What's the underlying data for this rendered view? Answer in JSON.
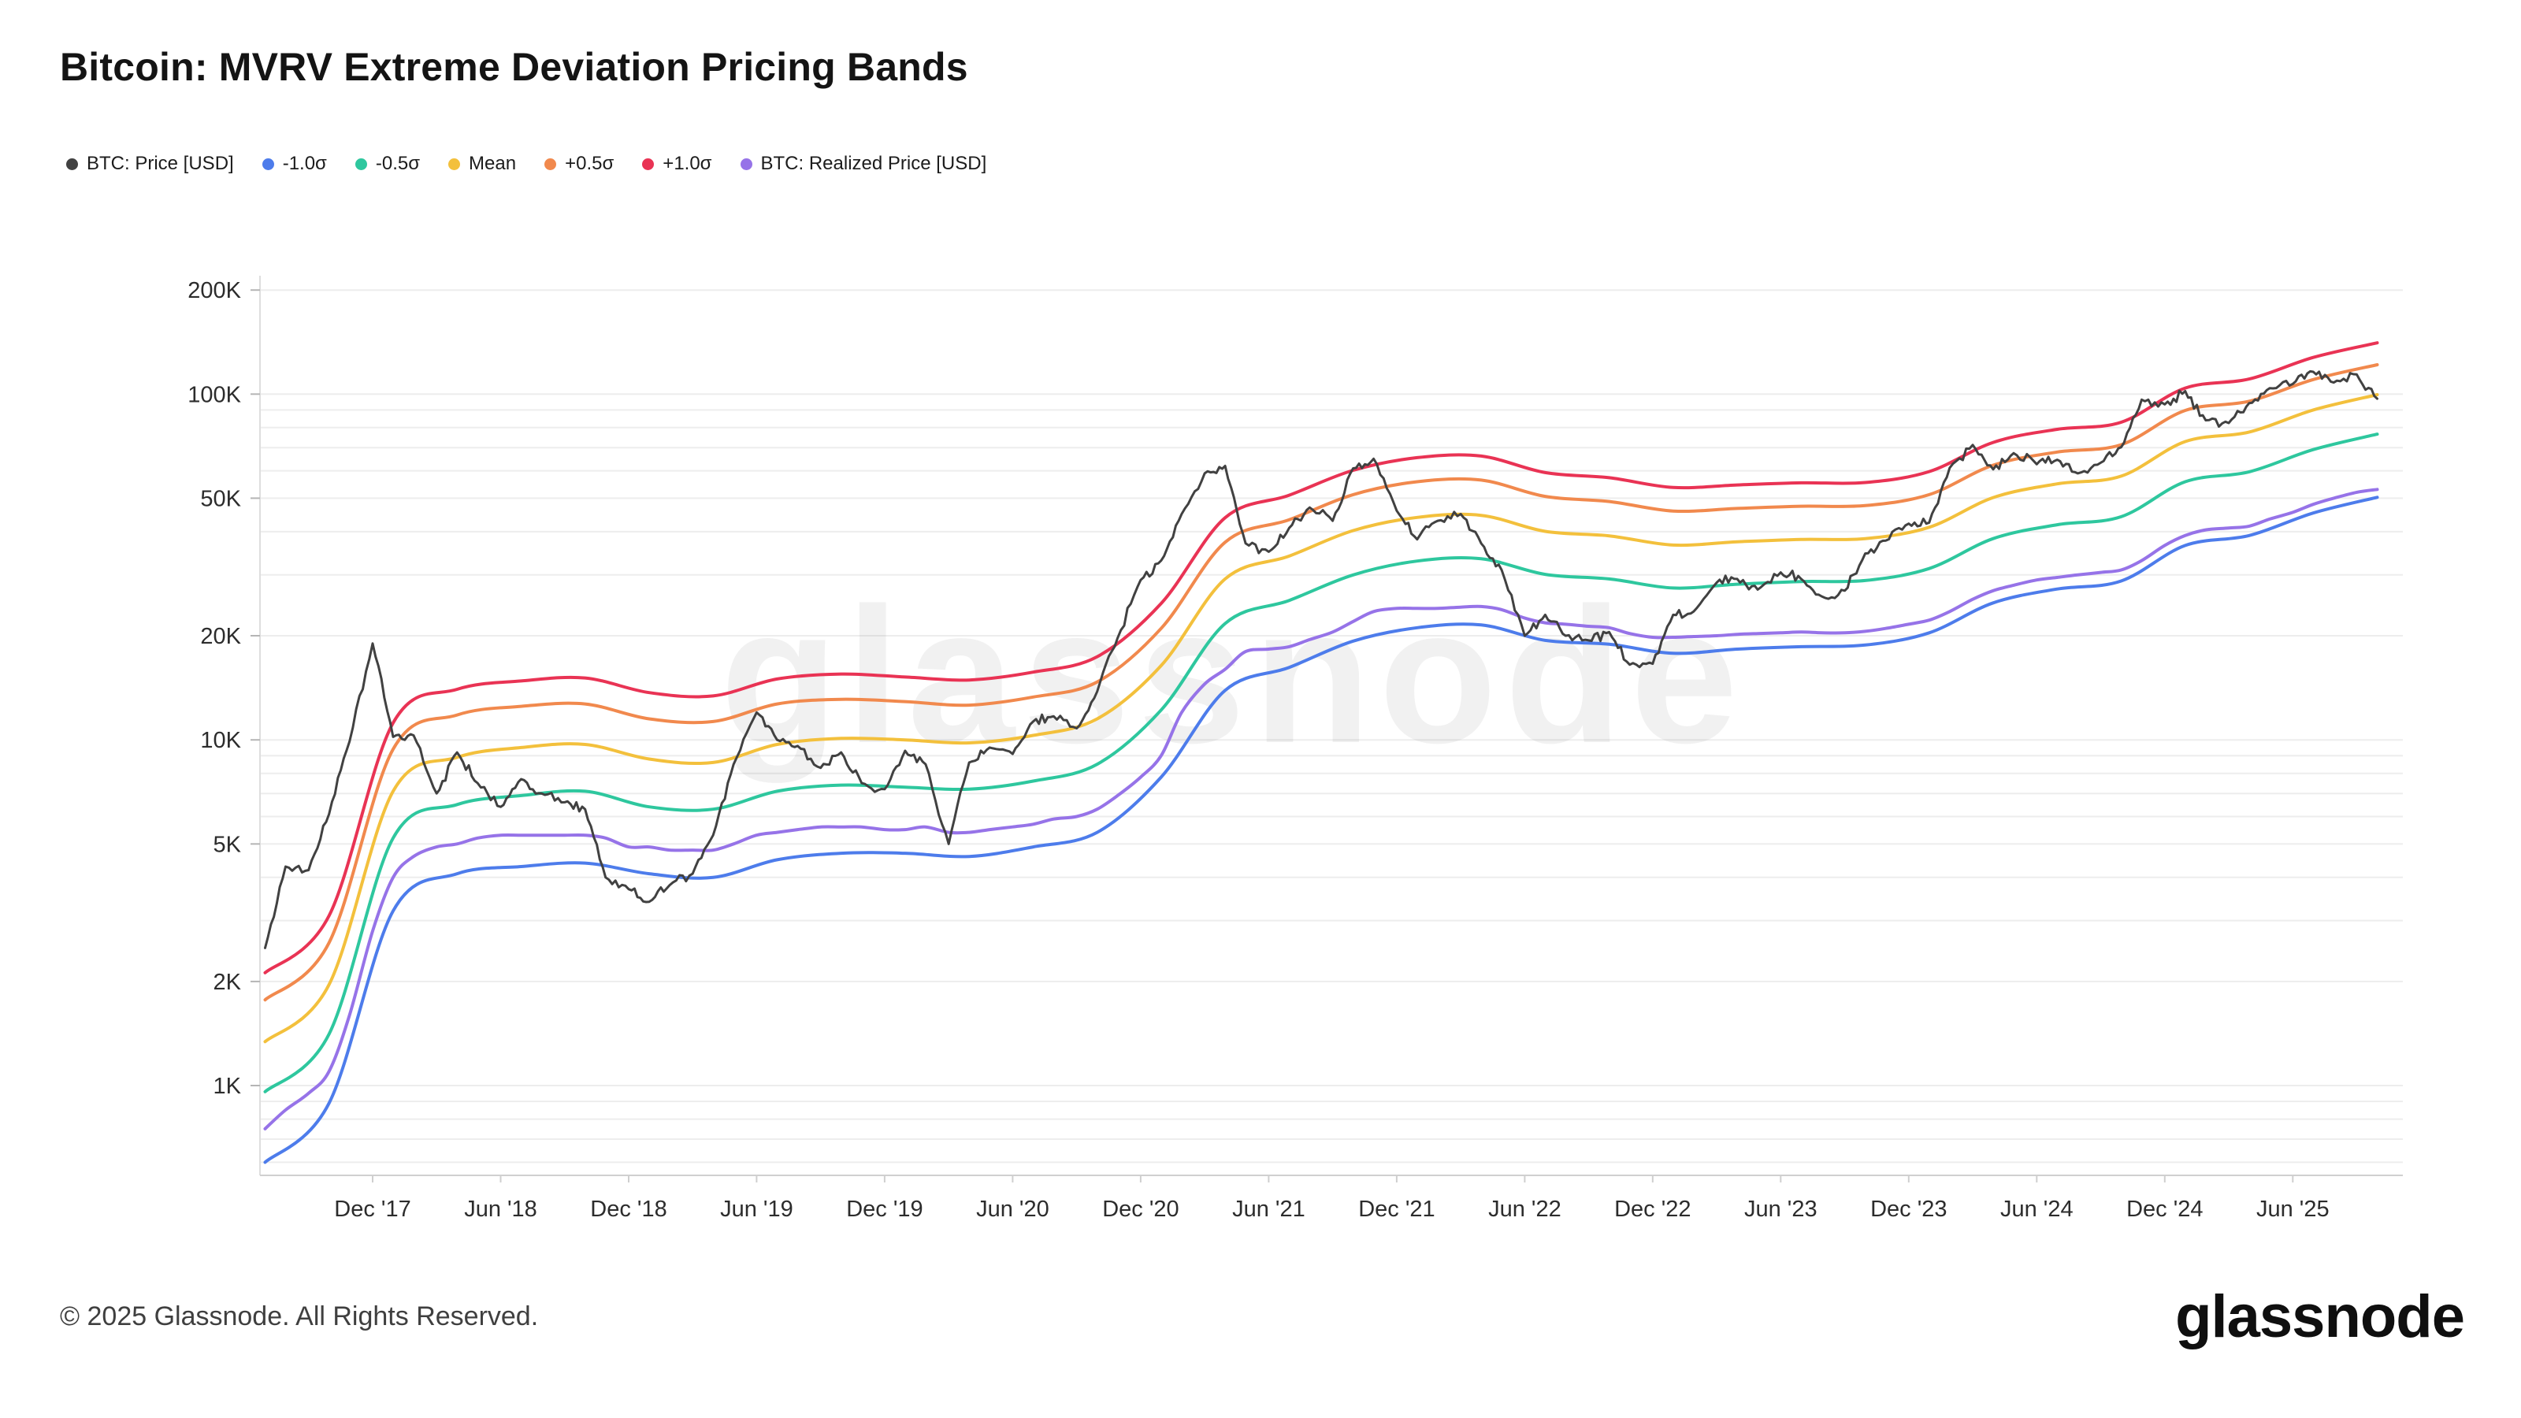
{
  "page": {
    "title": "Bitcoin: MVRV Extreme Deviation Pricing Bands",
    "watermark": "glassnode",
    "footer": {
      "copyright": "© 2025 Glassnode. All Rights Reserved.",
      "brand": "glassnode"
    }
  },
  "legend": {
    "position": "top-left",
    "items": [
      {
        "key": "btc-price",
        "label": "BTC: Price [USD]",
        "color": "#414141"
      },
      {
        "key": "minus-1-0-sigma",
        "label": "-1.0σ",
        "color": "#4d7ceb"
      },
      {
        "key": "minus-0-5-sigma",
        "label": "-0.5σ",
        "color": "#2ec79e"
      },
      {
        "key": "mean",
        "label": "Mean",
        "color": "#f3c03c"
      },
      {
        "key": "plus-0-5-sigma",
        "label": "+0.5σ",
        "color": "#f1894d"
      },
      {
        "key": "plus-1-0-sigma",
        "label": "+1.0σ",
        "color": "#e93354"
      },
      {
        "key": "btc-realized-price",
        "label": "BTC: Realized Price [USD]",
        "color": "#9673e8"
      }
    ]
  },
  "chart_data": {
    "type": "line",
    "title": "Bitcoin: MVRV Extreme Deviation Pricing Bands",
    "y_scale": "log",
    "y_unit": "USD (values in thousands)",
    "grid": "horizontal-only",
    "x_domain": [
      2017.48,
      2025.85
    ],
    "y_domain_k": [
      0.55,
      220
    ],
    "y_ticks": [
      {
        "label": "1K",
        "k": 1
      },
      {
        "label": "2K",
        "k": 2
      },
      {
        "label": "5K",
        "k": 5
      },
      {
        "label": "10K",
        "k": 10
      },
      {
        "label": "20K",
        "k": 20
      },
      {
        "label": "50K",
        "k": 50
      },
      {
        "label": "100K",
        "k": 100
      },
      {
        "label": "200K",
        "k": 200
      }
    ],
    "minor_gridlines_k": [
      0.6,
      0.7,
      0.8,
      0.9,
      1,
      2,
      3,
      4,
      5,
      6,
      7,
      8,
      9,
      10,
      20,
      30,
      40,
      50,
      60,
      70,
      80,
      90,
      100,
      200
    ],
    "x_ticks": [
      {
        "label": "Dec '17",
        "x": 2017.92
      },
      {
        "label": "Jun '18",
        "x": 2018.42
      },
      {
        "label": "Dec '18",
        "x": 2018.92
      },
      {
        "label": "Jun '19",
        "x": 2019.42
      },
      {
        "label": "Dec '19",
        "x": 2019.92
      },
      {
        "label": "Jun '20",
        "x": 2020.42
      },
      {
        "label": "Dec '20",
        "x": 2020.92
      },
      {
        "label": "Jun '21",
        "x": 2021.42
      },
      {
        "label": "Dec '21",
        "x": 2021.92
      },
      {
        "label": "Jun '22",
        "x": 2022.42
      },
      {
        "label": "Dec '22",
        "x": 2022.92
      },
      {
        "label": "Jun '23",
        "x": 2023.42
      },
      {
        "label": "Dec '23",
        "x": 2023.92
      },
      {
        "label": "Jun '24",
        "x": 2024.42
      },
      {
        "label": "Dec '24",
        "x": 2024.92
      },
      {
        "label": "Jun '25",
        "x": 2025.42
      }
    ],
    "x_monthly": [
      2017.5,
      2017.58,
      2017.67,
      2017.75,
      2017.83,
      2017.92,
      2018,
      2018.08,
      2018.17,
      2018.25,
      2018.33,
      2018.42,
      2018.5,
      2018.58,
      2018.67,
      2018.75,
      2018.83,
      2018.92,
      2019,
      2019.08,
      2019.17,
      2019.25,
      2019.33,
      2019.42,
      2019.5,
      2019.58,
      2019.67,
      2019.75,
      2019.83,
      2019.92,
      2020,
      2020.08,
      2020.17,
      2020.25,
      2020.33,
      2020.42,
      2020.5,
      2020.58,
      2020.67,
      2020.75,
      2020.83,
      2020.92,
      2021,
      2021.08,
      2021.17,
      2021.25,
      2021.33,
      2021.42,
      2021.5,
      2021.58,
      2021.67,
      2021.75,
      2021.83,
      2021.92,
      2022,
      2022.08,
      2022.17,
      2022.25,
      2022.33,
      2022.42,
      2022.5,
      2022.58,
      2022.67,
      2022.75,
      2022.83,
      2022.92,
      2023,
      2023.08,
      2023.17,
      2023.25,
      2023.33,
      2023.42,
      2023.5,
      2023.58,
      2023.67,
      2023.75,
      2023.83,
      2023.92,
      2024,
      2024.08,
      2024.17,
      2024.25,
      2024.33,
      2024.42,
      2024.5,
      2024.58,
      2024.67,
      2024.75,
      2024.83,
      2024.92,
      2025,
      2025.08,
      2025.17,
      2025.25,
      2025.33,
      2025.42,
      2025.5,
      2025.58,
      2025.67,
      2025.75
    ],
    "x_quarterly": [
      2017.5,
      2017.75,
      2018,
      2018.25,
      2018.5,
      2018.75,
      2019,
      2019.25,
      2019.5,
      2019.75,
      2020,
      2020.25,
      2020.5,
      2020.75,
      2021,
      2021.25,
      2021.5,
      2021.75,
      2022,
      2022.25,
      2022.5,
      2022.75,
      2023,
      2023.25,
      2023.5,
      2023.75,
      2024,
      2024.25,
      2024.5,
      2024.75,
      2025,
      2025.25,
      2025.5,
      2025.75
    ],
    "series": [
      {
        "key": "btc-price",
        "name": "BTC: Price [USD]",
        "color": "#414141",
        "width": 3,
        "x": "monthly",
        "jitter": 7,
        "y_k": [
          2.5,
          4.3,
          4.2,
          6.1,
          9.9,
          19,
          10.2,
          10.3,
          7,
          9.2,
          7.5,
          6.4,
          7.7,
          7,
          6.6,
          6.3,
          4,
          3.7,
          3.4,
          3.8,
          4.1,
          5.3,
          8.5,
          12,
          10,
          9.6,
          8.3,
          9.2,
          7.5,
          7.2,
          9.3,
          8.5,
          5,
          8.6,
          9.5,
          9.1,
          11.3,
          11.7,
          10.8,
          13.8,
          19.7,
          29,
          33,
          45,
          59,
          62,
          37,
          35,
          41,
          47,
          43,
          61,
          65,
          46,
          38,
          43,
          45,
          37,
          31,
          20,
          23,
          20,
          19.4,
          20.5,
          16.5,
          16.6,
          23,
          23.5,
          28.5,
          29.2,
          27.2,
          30.5,
          29.2,
          26,
          27,
          34.6,
          37.7,
          42.2,
          42.5,
          61.2,
          71.3,
          60.6,
          67.5,
          62.7,
          64.6,
          59,
          63.3,
          70.2,
          96.4,
          93.4,
          102,
          84,
          82.5,
          94.2,
          104,
          107,
          116,
          108,
          114,
          97
        ]
      },
      {
        "key": "minus-1-0-sigma",
        "name": "-1.0σ",
        "color": "#4d7ceb",
        "width": 4,
        "x": "quarterly",
        "y_k": [
          0.6,
          0.89,
          3.2,
          4.1,
          4.3,
          4.4,
          4.1,
          4,
          4.5,
          4.7,
          4.7,
          4.6,
          4.9,
          5.4,
          7.8,
          13.9,
          16.2,
          19.3,
          21.1,
          21.5,
          19.4,
          18.9,
          17.8,
          18.3,
          18.6,
          18.8,
          20.4,
          24.9,
          27.3,
          28.8,
          36.5,
          39,
          45.3,
          50.3
        ]
      },
      {
        "key": "minus-0-5-sigma",
        "name": "-0.5σ",
        "color": "#2ec79e",
        "width": 4,
        "x": "quarterly",
        "y_k": [
          0.96,
          1.41,
          5.2,
          6.5,
          6.9,
          7.1,
          6.4,
          6.3,
          7.1,
          7.4,
          7.3,
          7.2,
          7.6,
          8.5,
          12.2,
          21.7,
          25.3,
          30,
          32.9,
          33.4,
          30.1,
          29.2,
          27.5,
          28.2,
          28.7,
          28.9,
          31.3,
          38.2,
          41.9,
          44.2,
          55.8,
          59.6,
          69.1,
          76.6
        ]
      },
      {
        "key": "mean",
        "name": "Mean",
        "color": "#f3c03c",
        "width": 4,
        "x": "quarterly",
        "y_k": [
          1.34,
          1.96,
          7.1,
          8.9,
          9.5,
          9.7,
          8.8,
          8.6,
          9.7,
          10.1,
          10,
          9.8,
          10.3,
          11.5,
          16.4,
          29.2,
          34,
          40.3,
          44,
          44.6,
          40.1,
          38.9,
          36.6,
          37.4,
          38,
          38.2,
          41.2,
          50.2,
          55,
          57.9,
          72.9,
          77.7,
          90,
          99.6
        ]
      },
      {
        "key": "plus-0-5-sigma",
        "name": "+0.5σ",
        "color": "#f1894d",
        "width": 4,
        "x": "quarterly",
        "y_k": [
          1.77,
          2.59,
          9.4,
          11.8,
          12.5,
          12.7,
          11.5,
          11.3,
          12.7,
          13.1,
          12.9,
          12.6,
          13.3,
          14.7,
          21,
          37.3,
          43.3,
          51.2,
          55.8,
          56.4,
          50.6,
          48.9,
          45.9,
          46.7,
          47.4,
          47.6,
          51.2,
          62.3,
          68,
          71.4,
          89.7,
          95.4,
          110.2,
          121.6
        ]
      },
      {
        "key": "plus-1-0-sigma",
        "name": "+1.0σ",
        "color": "#e93354",
        "width": 4,
        "x": "quarterly",
        "y_k": [
          2.12,
          3.1,
          11.2,
          14,
          14.8,
          15.1,
          13.7,
          13.4,
          15,
          15.5,
          15.2,
          14.9,
          15.7,
          17.4,
          24.8,
          43.9,
          51,
          60.2,
          65.5,
          66.2,
          59.3,
          57.3,
          53.7,
          54.6,
          55.4,
          55.5,
          59.7,
          72.5,
          79.1,
          82.9,
          104.1,
          110.6,
          127.7,
          140.7
        ]
      },
      {
        "key": "btc-realized-price",
        "name": "BTC: Realized Price [USD]",
        "color": "#9673e8",
        "width": 4,
        "x": "monthly",
        "y_k": [
          0.75,
          0.85,
          0.95,
          1.1,
          1.6,
          2.8,
          4,
          4.6,
          4.9,
          5,
          5.2,
          5.3,
          5.3,
          5.3,
          5.3,
          5.3,
          5.2,
          4.9,
          4.9,
          4.8,
          4.8,
          4.8,
          5,
          5.3,
          5.4,
          5.5,
          5.6,
          5.6,
          5.6,
          5.5,
          5.5,
          5.6,
          5.4,
          5.4,
          5.5,
          5.6,
          5.7,
          5.9,
          6,
          6.3,
          6.9,
          7.8,
          9,
          12,
          14.5,
          16,
          18,
          18.3,
          18.6,
          19.5,
          20.5,
          22,
          23.5,
          24,
          24,
          24,
          24.2,
          24.3,
          23.8,
          22.5,
          21.8,
          21.6,
          21.3,
          21.1,
          20.3,
          19.8,
          19.8,
          19.9,
          20,
          20.2,
          20.3,
          20.4,
          20.5,
          20.4,
          20.4,
          20.6,
          21,
          21.6,
          22.2,
          23.5,
          25.5,
          27,
          28,
          29,
          29.5,
          30,
          30.5,
          31,
          33,
          36.5,
          39,
          40.5,
          41,
          41.5,
          43.5,
          45.5,
          48,
          50,
          52,
          53
        ]
      }
    ]
  }
}
